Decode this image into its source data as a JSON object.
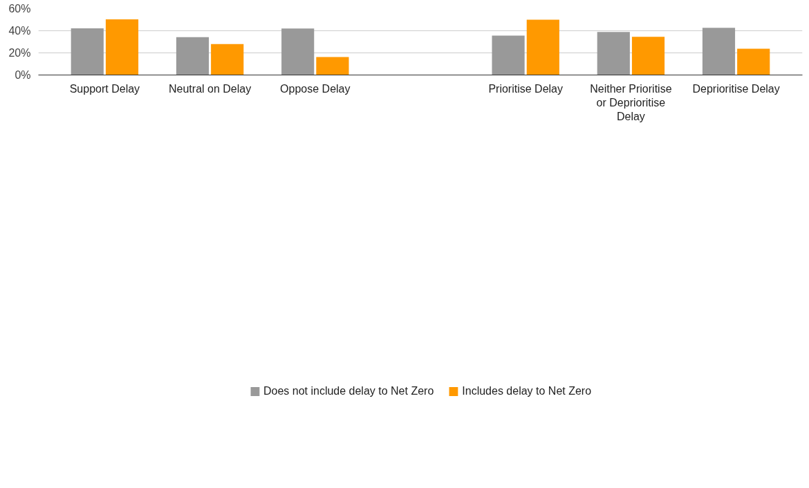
{
  "chart_data": {
    "type": "bar",
    "categories": [
      "Support Delay",
      "Neutral on Delay",
      "Oppose Delay",
      null,
      "Prioritise Delay",
      "Neither Prioritise or Deprioritise Delay",
      "Deprioritise Delay"
    ],
    "series": [
      {
        "name": "Does not include delay to Net Zero",
        "color": "#999999",
        "values": [
          42.2,
          34.2,
          42.0,
          null,
          35.7,
          38.9,
          42.6
        ]
      },
      {
        "name": "Includes delay to Net Zero",
        "color": "#ff9900",
        "values": [
          50.3,
          28.0,
          16.3,
          null,
          50.0,
          34.5,
          23.7
        ]
      }
    ],
    "ylim": [
      0,
      60
    ],
    "yticks": [
      {
        "value": 0,
        "label": "0%"
      },
      {
        "value": 20,
        "label": "20%"
      },
      {
        "value": 40,
        "label": "40%"
      },
      {
        "value": 60,
        "label": "60%"
      }
    ],
    "grid": "y",
    "legend": "bottom"
  }
}
